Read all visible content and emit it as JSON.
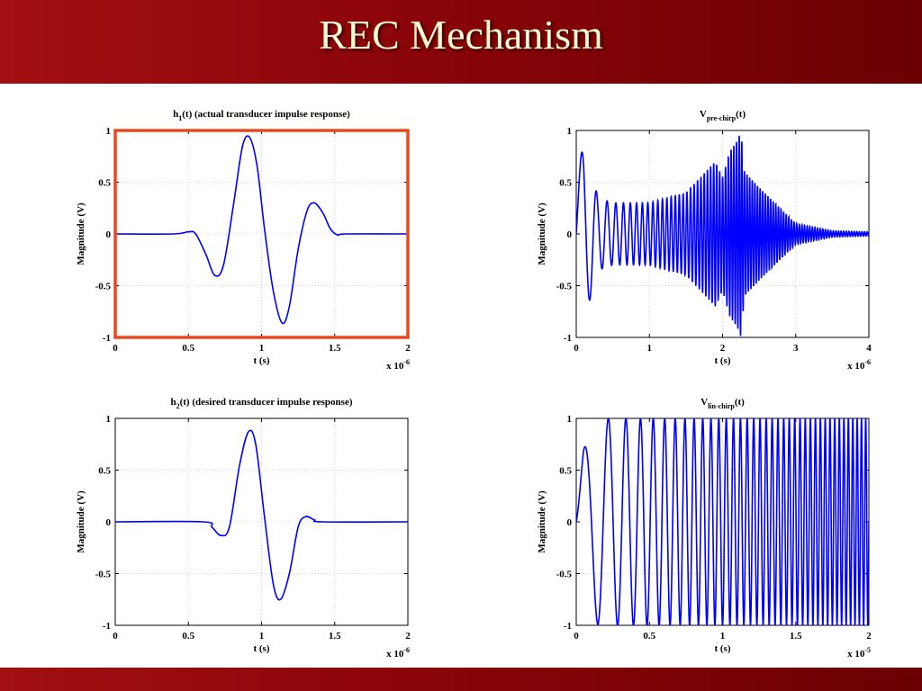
{
  "slide": {
    "title": "REC Mechanism"
  },
  "chart_data": [
    {
      "type": "line",
      "title_main": "h",
      "title_sub": "1",
      "title_rest": "(t) (actual transducer impulse response)",
      "xlabel": "t (s)",
      "ylabel": "Magnitude (V)",
      "xlim": [
        0,
        2
      ],
      "ylim": [
        -1,
        1
      ],
      "xticks": [
        "0",
        "0.5",
        "1",
        "1.5",
        "2"
      ],
      "yticks": [
        "1",
        "0.5",
        "0",
        "-0.5",
        "-1"
      ],
      "x_multiplier": "x 10",
      "x_multiplier_exp": "-6",
      "grid": true,
      "highlight_frame": true,
      "frame_color": "#e84a1f",
      "line_color": "#0000ff",
      "series": [
        {
          "x": [
            0,
            0.4,
            0.5,
            0.55,
            0.62,
            0.68,
            0.74,
            0.81,
            0.87,
            0.92,
            0.97,
            1.02,
            1.08,
            1.14,
            1.19,
            1.25,
            1.31,
            1.36,
            1.42,
            1.47,
            1.52,
            1.58,
            2
          ],
          "y": [
            0,
            0,
            0.02,
            0,
            -0.2,
            -0.4,
            -0.3,
            0.3,
            0.85,
            0.93,
            0.65,
            0.05,
            -0.55,
            -0.86,
            -0.7,
            -0.15,
            0.22,
            0.3,
            0.2,
            0.05,
            -0.01,
            0,
            0
          ]
        }
      ]
    },
    {
      "type": "line",
      "title_main": "V",
      "title_sub": "pre-chirp",
      "title_rest": "(t)",
      "xlabel": "t (s)",
      "ylabel": "Magnitude (V)",
      "xlim": [
        0,
        4
      ],
      "ylim": [
        -1,
        1
      ],
      "xticks": [
        "0",
        "1",
        "2",
        "3",
        "4"
      ],
      "yticks": [
        "1",
        "0.5",
        "0",
        "-0.5",
        "-1"
      ],
      "x_multiplier": "x 10",
      "x_multiplier_exp": "-6",
      "grid": true,
      "highlight_frame": false,
      "line_color": "#0000ff",
      "signal": {
        "duration": 4,
        "f0": 3,
        "f1": 28,
        "sweep_end": 2.25,
        "envelope_t": [
          0,
          0.1,
          0.2,
          0.3,
          0.5,
          1.0,
          1.5,
          1.9,
          2.0,
          2.1,
          2.2,
          2.25,
          2.3,
          2.5,
          3.0,
          3.5,
          4.0
        ],
        "envelope_a": [
          0.6,
          0.85,
          0.6,
          0.35,
          0.3,
          0.3,
          0.4,
          0.7,
          0.55,
          0.8,
          0.9,
          1.0,
          0.6,
          0.45,
          0.1,
          0.03,
          0.02
        ]
      }
    },
    {
      "type": "line",
      "title_main": "h",
      "title_sub": "2",
      "title_rest": "(t) (desired transducer impulse response)",
      "xlabel": "t (s)",
      "ylabel": "Magnitude (V)",
      "xlim": [
        0,
        2
      ],
      "ylim": [
        -1,
        1
      ],
      "xticks": [
        "0",
        "0.5",
        "1",
        "1.5",
        "2"
      ],
      "yticks": [
        "1",
        "0.5",
        "0",
        "-0.5",
        "-1"
      ],
      "x_multiplier": "x 10",
      "x_multiplier_exp": "-6",
      "grid": true,
      "highlight_frame": false,
      "line_color": "#0000ff",
      "series": [
        {
          "x": [
            0,
            0.6,
            0.66,
            0.72,
            0.78,
            0.85,
            0.91,
            0.96,
            1.02,
            1.08,
            1.13,
            1.19,
            1.25,
            1.3,
            1.36,
            1.42,
            2
          ],
          "y": [
            0,
            0,
            -0.05,
            -0.13,
            -0.05,
            0.55,
            0.87,
            0.75,
            0.05,
            -0.6,
            -0.75,
            -0.5,
            -0.05,
            0.05,
            0.02,
            0,
            0
          ]
        }
      ]
    },
    {
      "type": "line",
      "title_main": "V",
      "title_sub": "lin-chirp",
      "title_rest": "(t)",
      "xlabel": "t (s)",
      "ylabel": "Magnitude (V)",
      "xlim": [
        0,
        2
      ],
      "ylim": [
        -1,
        1
      ],
      "xticks": [
        "0",
        "0.5",
        "1",
        "1.5",
        "2"
      ],
      "yticks": [
        "1",
        "0.5",
        "0",
        "-0.5",
        "-1"
      ],
      "x_multiplier": "x 10",
      "x_multiplier_exp": "-5",
      "grid": true,
      "highlight_frame": false,
      "line_color": "#0000ff",
      "signal": {
        "duration": 2,
        "f0": 4,
        "f1": 35,
        "sweep_end": 2,
        "envelope_t": [
          0,
          0.05,
          0.15,
          2.0
        ],
        "envelope_a": [
          0.3,
          0.7,
          1.0,
          1.0
        ]
      }
    }
  ]
}
